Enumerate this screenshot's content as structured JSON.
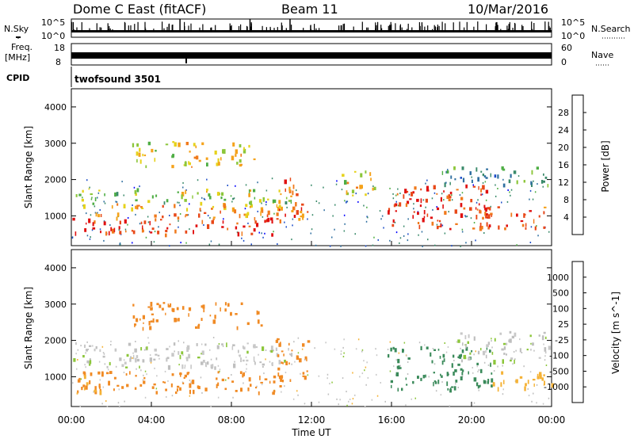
{
  "header": {
    "station": "Dome C East (fitACF)",
    "beam": "Beam 11",
    "date": "10/Mar/2016"
  },
  "top_panels": {
    "nsky_label": "N.Sky",
    "nsearch_label": "N.Search",
    "nsky_ticks": [
      "10^5",
      "10^0"
    ],
    "freq_label_1": "Freq.",
    "freq_label_2": "[MHz]",
    "freq_ticks": [
      "18",
      "8"
    ],
    "nave_label": "Nave",
    "nave_ticks": [
      "60",
      "0"
    ],
    "cpid_label": "CPID",
    "cpid_value": "twofsound 3501"
  },
  "x_axis": {
    "title": "Time UT",
    "ticks": [
      "00:00",
      "04:00",
      "08:00",
      "12:00",
      "16:00",
      "20:00",
      "00:00"
    ]
  },
  "colors": {
    "power_scale": [
      "#0000ff",
      "#1c4dc8",
      "#2f6fa0",
      "#3a8a6a",
      "#4fae45",
      "#8cc63a",
      "#e6d21c",
      "#f5a21a",
      "#f07a1c",
      "#e84818",
      "#e01010"
    ],
    "velocity_scale": [
      "#e01010",
      "#f05a16",
      "#f08a24",
      "#f5b236",
      "#c8c8c8",
      "#bfbfbf",
      "#8cc63a",
      "#3a8a5a",
      "#2f6f8a",
      "#1c4dc8"
    ]
  },
  "chart_data": [
    {
      "type": "heatmap",
      "title": "",
      "xlabel": "",
      "ylabel": "Slant Range [km]",
      "x_range_hours": [
        0,
        24
      ],
      "ylim": [
        180,
        4500
      ],
      "y_ticks": [
        "1000",
        "2000",
        "3000",
        "4000"
      ],
      "colorbar_label": "Power [dB]",
      "colorbar_ticks": [
        "4",
        "8",
        "12",
        "16",
        "20",
        "24",
        "28"
      ],
      "colorbar_range": [
        0,
        30
      ],
      "regions": [
        {
          "t0": 0.0,
          "t1": 10.2,
          "r0": 400,
          "r1": 900,
          "level": 27
        },
        {
          "t0": 0.5,
          "t1": 10.5,
          "r0": 900,
          "r1": 1300,
          "level": 22
        },
        {
          "t0": 0.0,
          "t1": 11.0,
          "r0": 1300,
          "r1": 1700,
          "level": 15
        },
        {
          "t0": 3.0,
          "t1": 9.5,
          "r0": 2300,
          "r1": 3000,
          "level": 18
        },
        {
          "t0": 10.2,
          "t1": 11.8,
          "r0": 800,
          "r1": 2000,
          "level": 24
        },
        {
          "t0": 13.5,
          "t1": 15.5,
          "r0": 1500,
          "r1": 2200,
          "level": 18
        },
        {
          "t0": 15.7,
          "t1": 21.0,
          "r0": 600,
          "r1": 1800,
          "level": 27
        },
        {
          "t0": 20.0,
          "t1": 24.0,
          "r0": 600,
          "r1": 1200,
          "level": 25
        },
        {
          "t0": 18.5,
          "t1": 24.0,
          "r0": 1800,
          "r1": 2300,
          "level": 10
        }
      ]
    },
    {
      "type": "heatmap",
      "title": "",
      "xlabel": "Time UT",
      "ylabel": "Slant Range [km]",
      "x_range_hours": [
        0,
        24
      ],
      "ylim": [
        180,
        4500
      ],
      "y_ticks": [
        "1000",
        "2000",
        "3000",
        "4000"
      ],
      "colorbar_label": "Velocity [m s^-1]",
      "colorbar_ticks": [
        "-1000",
        "-500",
        "-100",
        "-25",
        "25",
        "100",
        "500",
        "1000"
      ],
      "regions": [
        {
          "t0": 0.0,
          "t1": 10.5,
          "r0": 500,
          "r1": 1100,
          "velocity": -300
        },
        {
          "t0": 0.0,
          "t1": 1.5,
          "r0": 500,
          "r1": 1000,
          "velocity": -80
        },
        {
          "t0": 0.0,
          "t1": 11.0,
          "r0": 1200,
          "r1": 1900,
          "velocity": 10
        },
        {
          "t0": 3.0,
          "t1": 9.5,
          "r0": 2300,
          "r1": 3000,
          "velocity": -200
        },
        {
          "t0": 10.2,
          "t1": 11.8,
          "r0": 800,
          "r1": 2000,
          "velocity": -400
        },
        {
          "t0": 15.8,
          "t1": 21.0,
          "r0": 600,
          "r1": 1800,
          "velocity": 200
        },
        {
          "t0": 21.0,
          "t1": 24.0,
          "r0": 600,
          "r1": 1100,
          "velocity": -60
        },
        {
          "t0": 19.0,
          "t1": 24.0,
          "r0": 1400,
          "r1": 2200,
          "velocity": 10
        }
      ]
    }
  ]
}
